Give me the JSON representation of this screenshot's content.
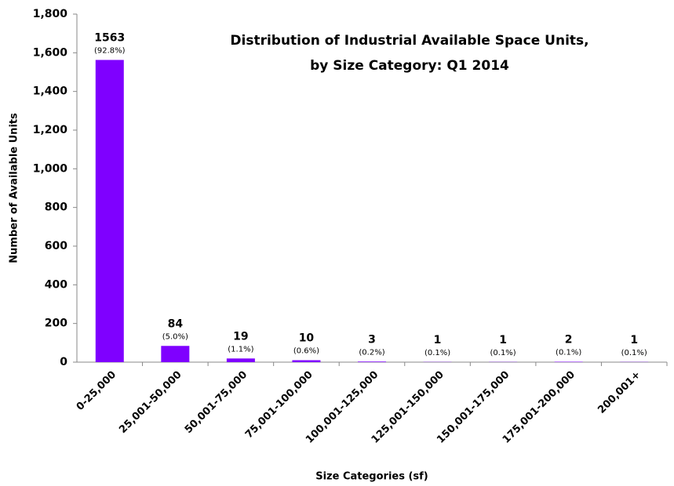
{
  "chart_data": {
    "type": "bar",
    "title": [
      "Distribution of Industrial Available Space Units,",
      "by Size Category: Q1 2014"
    ],
    "x_label": "Size Categories (sf)",
    "y_label": "Number of Available Units",
    "categories": [
      "0-25,000",
      "25,001-50,000",
      "50,001-75,000",
      "75,001-100,000",
      "100,001-125,000",
      "125,001-150,000",
      "150,001-175,000",
      "175,001-200,000",
      "200,001+"
    ],
    "values": [
      1563,
      84,
      19,
      10,
      3,
      1,
      1,
      2,
      1
    ],
    "percent_labels": [
      "(92.8%)",
      "(5.0%)",
      "(1.1%)",
      "(0.6%)",
      "(0.2%)",
      "(0.1%)",
      "(0.1%)",
      "(0.1%)",
      "(0.1%)"
    ],
    "color": "#7f00ff",
    "ylim": [
      0,
      1800
    ],
    "yticks": [
      0,
      200,
      400,
      600,
      800,
      {
        "value": 1000,
        "label": "1,000"
      },
      {
        "value": 1200,
        "label": "1,200"
      },
      {
        "value": 1400,
        "label": "1,400"
      },
      {
        "value": 1600,
        "label": "1,600"
      },
      {
        "value": 1800,
        "label": "1,800"
      }
    ],
    "grid": false
  }
}
